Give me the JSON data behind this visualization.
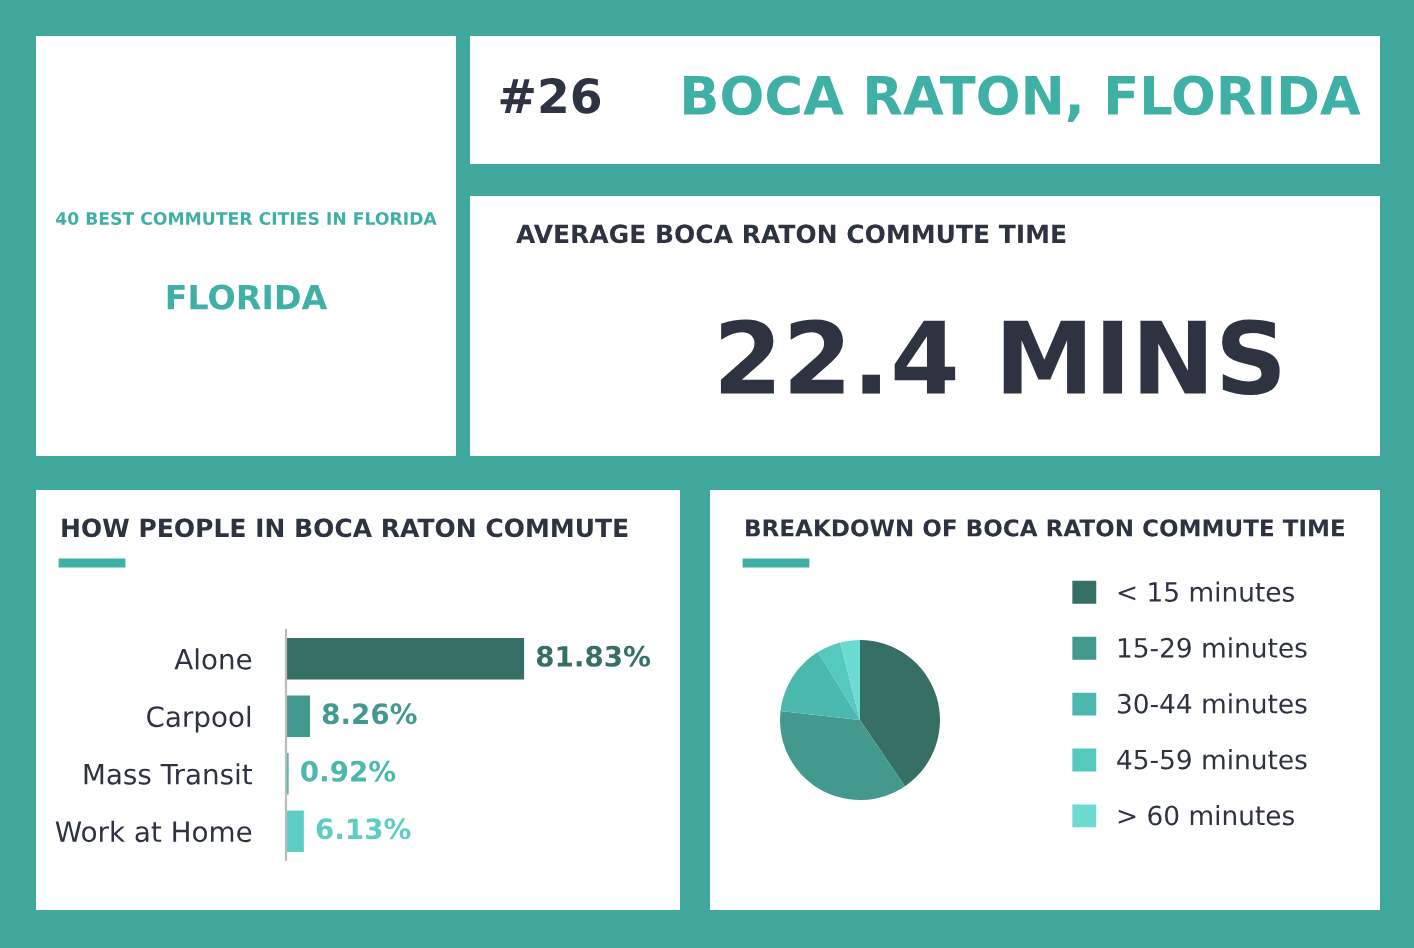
{
  "chart_data": [
    {
      "type": "other",
      "title": "BOCA RATON, FLORIDA",
      "annotations": [
        "#26",
        "40 BEST COMMUTER CITIES IN FLORIDA",
        "FLORIDA",
        "AVERAGE BOCA RATON COMMUTE TIME",
        "22.4 MINS"
      ]
    },
    {
      "type": "bar",
      "orientation": "horizontal",
      "title": "HOW PEOPLE IN BOCA RATON COMMUTE",
      "categories": [
        "Alone",
        "Carpool",
        "Mass Transit",
        "Work at Home"
      ],
      "values": [
        81.83,
        8.26,
        0.92,
        6.13
      ],
      "colors": [
        "#356f66",
        "#43998e",
        "#4bb8ad",
        "#5ccdc3"
      ],
      "value_labels": [
        "81.83%",
        "8.26%",
        "0.92%",
        "6.13%"
      ],
      "tick_labels": "y"
    },
    {
      "type": "pie",
      "title": "BREAKDOWN OF BOCA RATON COMMUTE TIME",
      "categories": [
        "< 15 minutes",
        "15-29 minutes",
        "30-44 minutes",
        "45-59 minutes",
        "> 60 minutes"
      ],
      "values": [
        40.5,
        36.3,
        14.4,
        4.8,
        4.0
      ],
      "colors": [
        "#356f66",
        "#43998e",
        "#4bb8ad",
        "#55c9bd",
        "#6ddcd0"
      ],
      "legend": "right"
    }
  ]
}
